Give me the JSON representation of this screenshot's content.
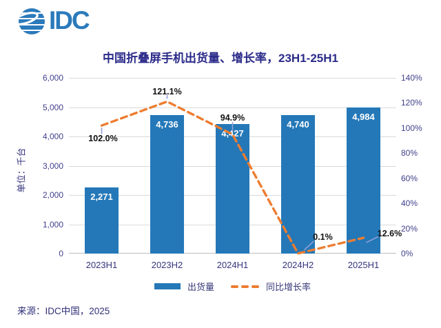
{
  "brand": {
    "logo_text": "IDC"
  },
  "header": {
    "title": "中国折叠屏手机出货量、增长率，23H1-25H1"
  },
  "chart_data": {
    "type": "combo-bar-line",
    "categories": [
      "2023H1",
      "2023H2",
      "2024H1",
      "2024H2",
      "2025H1"
    ],
    "series": [
      {
        "name": "出货量",
        "type": "bar",
        "axis": "left",
        "color": "#2478B8",
        "values": [
          2271,
          4736,
          4427,
          4740,
          4984
        ],
        "labels": [
          "2,271",
          "4,736",
          "4,427",
          "4,740",
          "4,984"
        ]
      },
      {
        "name": "同比增长率",
        "type": "line",
        "axis": "right",
        "color": "#ED7D31",
        "style": "dashed",
        "values": [
          102.0,
          121.1,
          94.9,
          0.1,
          12.6
        ],
        "labels": [
          "102.0%",
          "121.1%",
          "94.9%",
          "0.1%",
          "12.6%"
        ]
      }
    ],
    "left_axis": {
      "title": "单位：千台",
      "range": [
        0,
        6000
      ],
      "ticks": [
        "0",
        "1,000",
        "2,000",
        "3,000",
        "4,000",
        "5,000",
        "6,000"
      ]
    },
    "right_axis": {
      "range": [
        0,
        140
      ],
      "ticks": [
        "0%",
        "20%",
        "40%",
        "60%",
        "80%",
        "100%",
        "120%",
        "140%"
      ]
    },
    "grid": "horizontal"
  },
  "legend": {
    "items": [
      {
        "label": "出货量"
      },
      {
        "label": "同比增长率"
      }
    ]
  },
  "footer": {
    "source": "来源：IDC中国，2025"
  }
}
